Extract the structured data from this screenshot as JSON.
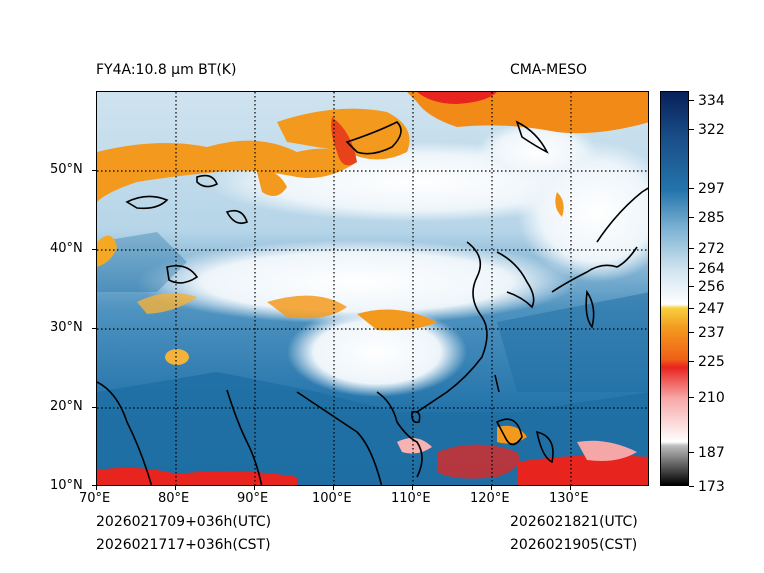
{
  "header": {
    "left_title": "FY4A:10.8 µm BT(K)",
    "right_title": "CMA-MESO"
  },
  "axes": {
    "x_ticks": [
      "70°E",
      "80°E",
      "90°E",
      "100°E",
      "110°E",
      "120°E",
      "130°E"
    ],
    "y_ticks": [
      "10°N",
      "20°N",
      "30°N",
      "40°N",
      "50°N"
    ]
  },
  "colorbar": {
    "unit": "K",
    "ticks": [
      "173",
      "187",
      "210",
      "225",
      "237",
      "247",
      "256",
      "264",
      "272",
      "285",
      "297",
      "322",
      "334"
    ]
  },
  "footer": {
    "init_utc": "2026021709+036h(UTC)",
    "init_cst": "2026021717+036h(CST)",
    "valid_utc": "2026021821(UTC)",
    "valid_cst": "2026021905(CST)"
  },
  "colors": {
    "ocean_blue": "#1f6fa5",
    "cloud_white": "#f2f7fa",
    "cold_cloud_orange": "#f0a01e",
    "deep_convection_red": "#e8241e",
    "coastline": "#000000"
  }
}
